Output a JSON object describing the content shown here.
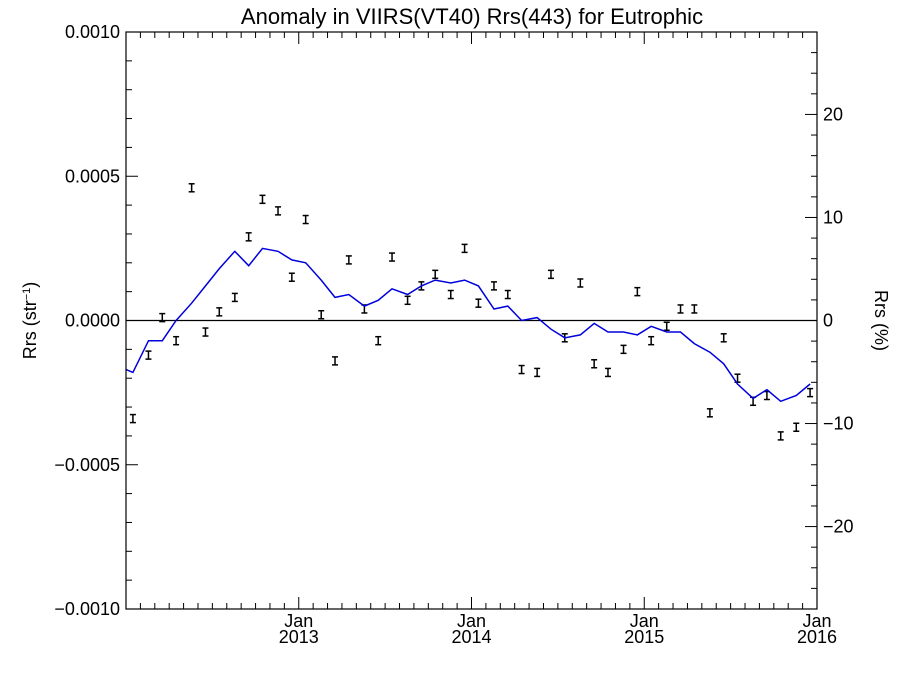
{
  "chart_data": {
    "type": "scatter",
    "title": "Anomaly in VIIRS(VT40) Rrs(443) for Eutrophic",
    "ylabel_main": "Rrs (str",
    "ylabel_sup": "−1",
    "ylabel_close": ")",
    "y2label": "Rrs (%)",
    "xlim": [
      2012.0,
      2016.0
    ],
    "ylim": [
      -0.001,
      0.001
    ],
    "y2lim": [
      -28,
      28
    ],
    "x_ticks": [
      {
        "x": 2013.0,
        "month": "Jan",
        "year": "2013"
      },
      {
        "x": 2014.0,
        "month": "Jan",
        "year": "2014"
      },
      {
        "x": 2015.0,
        "month": "Jan",
        "year": "2015"
      },
      {
        "x": 2016.0,
        "month": "Jan",
        "year": "2016"
      }
    ],
    "y_ticks": [
      {
        "value": 0.001,
        "label": "0.0010"
      },
      {
        "value": 0.0005,
        "label": "0.0005"
      },
      {
        "value": 0.0,
        "label": "0.0000"
      },
      {
        "value": -0.0005,
        "label": "−0.0005"
      },
      {
        "value": -0.001,
        "label": "−0.0010"
      }
    ],
    "y2_ticks": [
      {
        "value": 20,
        "label": "20"
      },
      {
        "value": 10,
        "label": "10"
      },
      {
        "value": 0,
        "label": "0"
      },
      {
        "value": -10,
        "label": "−10"
      },
      {
        "value": -20,
        "label": "−20"
      }
    ],
    "zero_line": 0.0,
    "line_color": "#0000dd",
    "series": [
      {
        "kind": "errorbar",
        "color": "#000000",
        "points": [
          {
            "x": 2012.04,
            "y": -0.00034
          },
          {
            "x": 2012.13,
            "y": -0.00012
          },
          {
            "x": 2012.21,
            "y": 1e-05
          },
          {
            "x": 2012.29,
            "y": -7e-05
          },
          {
            "x": 2012.38,
            "y": 0.00046
          },
          {
            "x": 2012.46,
            "y": -4e-05
          },
          {
            "x": 2012.54,
            "y": 3e-05
          },
          {
            "x": 2012.63,
            "y": 8e-05
          },
          {
            "x": 2012.71,
            "y": 0.00029
          },
          {
            "x": 2012.79,
            "y": 0.00042
          },
          {
            "x": 2012.88,
            "y": 0.00038
          },
          {
            "x": 2012.96,
            "y": 0.00015
          },
          {
            "x": 2013.04,
            "y": 0.00035
          },
          {
            "x": 2013.13,
            "y": 2e-05
          },
          {
            "x": 2013.21,
            "y": -0.00014
          },
          {
            "x": 2013.29,
            "y": 0.00021
          },
          {
            "x": 2013.38,
            "y": 4e-05
          },
          {
            "x": 2013.46,
            "y": -7e-05
          },
          {
            "x": 2013.54,
            "y": 0.00022
          },
          {
            "x": 2013.63,
            "y": 7e-05
          },
          {
            "x": 2013.71,
            "y": 0.00012
          },
          {
            "x": 2013.79,
            "y": 0.00016
          },
          {
            "x": 2013.88,
            "y": 9e-05
          },
          {
            "x": 2013.96,
            "y": 0.00025
          },
          {
            "x": 2014.04,
            "y": 6e-05
          },
          {
            "x": 2014.13,
            "y": 0.00012
          },
          {
            "x": 2014.21,
            "y": 9e-05
          },
          {
            "x": 2014.29,
            "y": -0.00017
          },
          {
            "x": 2014.38,
            "y": -0.00018
          },
          {
            "x": 2014.46,
            "y": 0.00016
          },
          {
            "x": 2014.54,
            "y": -6e-05
          },
          {
            "x": 2014.63,
            "y": 0.00013
          },
          {
            "x": 2014.71,
            "y": -0.00015
          },
          {
            "x": 2014.79,
            "y": -0.00018
          },
          {
            "x": 2014.88,
            "y": -0.0001
          },
          {
            "x": 2014.96,
            "y": 0.0001
          },
          {
            "x": 2015.04,
            "y": -7e-05
          },
          {
            "x": 2015.13,
            "y": -2e-05
          },
          {
            "x": 2015.21,
            "y": 4e-05
          },
          {
            "x": 2015.29,
            "y": 4e-05
          },
          {
            "x": 2015.38,
            "y": -0.00032
          },
          {
            "x": 2015.46,
            "y": -6e-05
          },
          {
            "x": 2015.54,
            "y": -0.0002
          },
          {
            "x": 2015.63,
            "y": -0.00028
          },
          {
            "x": 2015.71,
            "y": -0.00026
          },
          {
            "x": 2015.79,
            "y": -0.0004
          },
          {
            "x": 2015.88,
            "y": -0.00037
          },
          {
            "x": 2015.96,
            "y": -0.00025
          }
        ]
      },
      {
        "kind": "line",
        "color": "#0000dd",
        "points": [
          {
            "x": 2012.0,
            "y": -0.00017
          },
          {
            "x": 2012.04,
            "y": -0.00018
          },
          {
            "x": 2012.13,
            "y": -7e-05
          },
          {
            "x": 2012.21,
            "y": -7e-05
          },
          {
            "x": 2012.29,
            "y": 0.0
          },
          {
            "x": 2012.38,
            "y": 6e-05
          },
          {
            "x": 2012.46,
            "y": 0.00012
          },
          {
            "x": 2012.54,
            "y": 0.00018
          },
          {
            "x": 2012.63,
            "y": 0.00024
          },
          {
            "x": 2012.71,
            "y": 0.00019
          },
          {
            "x": 2012.79,
            "y": 0.00025
          },
          {
            "x": 2012.88,
            "y": 0.00024
          },
          {
            "x": 2012.96,
            "y": 0.00021
          },
          {
            "x": 2013.04,
            "y": 0.0002
          },
          {
            "x": 2013.13,
            "y": 0.00014
          },
          {
            "x": 2013.21,
            "y": 8e-05
          },
          {
            "x": 2013.29,
            "y": 9e-05
          },
          {
            "x": 2013.38,
            "y": 5e-05
          },
          {
            "x": 2013.46,
            "y": 7e-05
          },
          {
            "x": 2013.54,
            "y": 0.00011
          },
          {
            "x": 2013.63,
            "y": 9e-05
          },
          {
            "x": 2013.71,
            "y": 0.00012
          },
          {
            "x": 2013.79,
            "y": 0.00014
          },
          {
            "x": 2013.88,
            "y": 0.00013
          },
          {
            "x": 2013.96,
            "y": 0.00014
          },
          {
            "x": 2014.04,
            "y": 0.00012
          },
          {
            "x": 2014.13,
            "y": 4e-05
          },
          {
            "x": 2014.21,
            "y": 5e-05
          },
          {
            "x": 2014.29,
            "y": 0.0
          },
          {
            "x": 2014.38,
            "y": 1e-05
          },
          {
            "x": 2014.46,
            "y": -3e-05
          },
          {
            "x": 2014.54,
            "y": -6e-05
          },
          {
            "x": 2014.63,
            "y": -5e-05
          },
          {
            "x": 2014.71,
            "y": -1e-05
          },
          {
            "x": 2014.79,
            "y": -4e-05
          },
          {
            "x": 2014.88,
            "y": -4e-05
          },
          {
            "x": 2014.96,
            "y": -5e-05
          },
          {
            "x": 2015.04,
            "y": -2e-05
          },
          {
            "x": 2015.13,
            "y": -4e-05
          },
          {
            "x": 2015.21,
            "y": -4e-05
          },
          {
            "x": 2015.29,
            "y": -8e-05
          },
          {
            "x": 2015.38,
            "y": -0.00011
          },
          {
            "x": 2015.46,
            "y": -0.00015
          },
          {
            "x": 2015.54,
            "y": -0.00022
          },
          {
            "x": 2015.63,
            "y": -0.00027
          },
          {
            "x": 2015.71,
            "y": -0.00024
          },
          {
            "x": 2015.79,
            "y": -0.00028
          },
          {
            "x": 2015.88,
            "y": -0.00026
          },
          {
            "x": 2015.96,
            "y": -0.00022
          }
        ]
      }
    ]
  }
}
